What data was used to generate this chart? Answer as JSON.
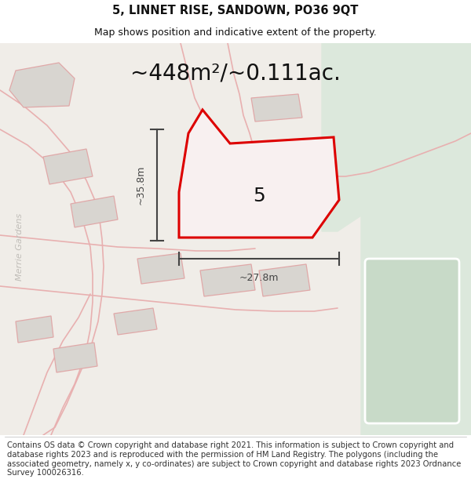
{
  "title_line1": "5, LINNET RISE, SANDOWN, PO36 9QT",
  "title_line2": "Map shows position and indicative extent of the property.",
  "area_text": "~448m²/~0.111ac.",
  "number_label": "5",
  "dim_width": "~27.8m",
  "dim_height": "~35.8m",
  "side_label": "Merrie Gardens",
  "footer_text": "Contains OS data © Crown copyright and database right 2021. This information is subject to Crown copyright and database rights 2023 and is reproduced with the permission of HM Land Registry. The polygons (including the associated geometry, namely x, y co-ordinates) are subject to Crown copyright and database rights 2023 Ordnance Survey 100026316.",
  "map_bg": "#f0ede8",
  "green_bg": "#dce8dc",
  "road_color": "#e8b0b0",
  "plot_edge_color": "#dd0000",
  "building_fill": "#d8d5d0",
  "building_edge": "#e0a8a8",
  "dim_color": "#444444",
  "text_color": "#111111",
  "title_fontsize": 10.5,
  "subtitle_fontsize": 9,
  "area_fontsize": 20,
  "number_fontsize": 18,
  "footer_fontsize": 7.2,
  "side_label_color": "#c0bdb8"
}
